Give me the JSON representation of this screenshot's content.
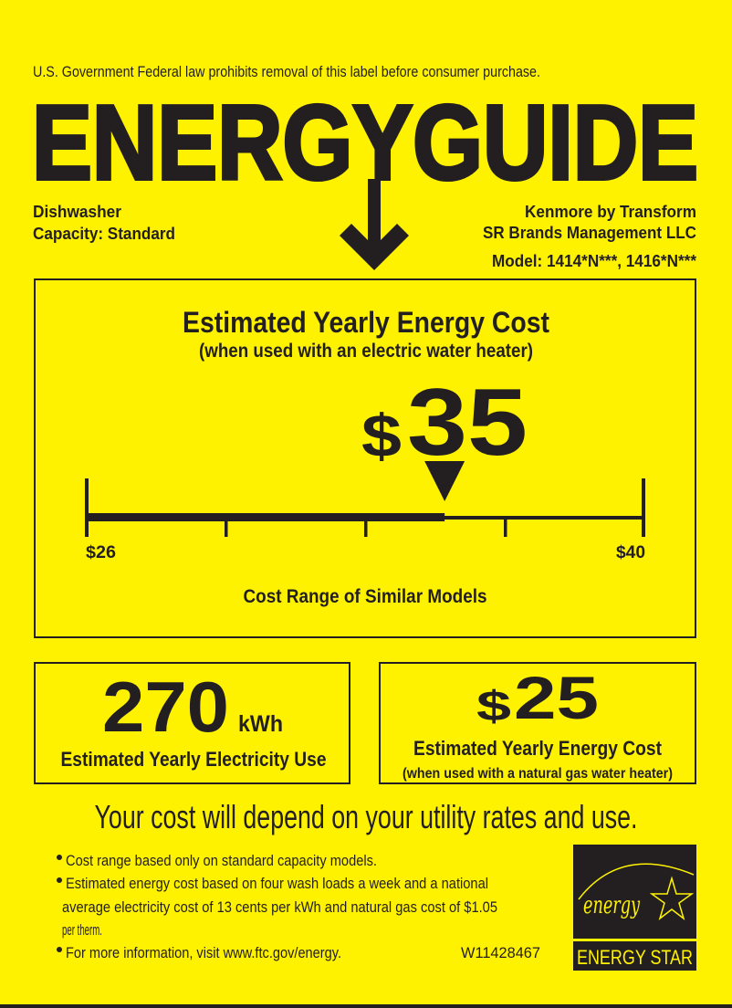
{
  "colors": {
    "background": "#fff200",
    "ink": "#231f20"
  },
  "header": {
    "notice": "U.S. Government  Federal law prohibits removal of this label before consumer purchase.",
    "title": "ENERGYGUIDE",
    "appliance": "Dishwasher",
    "capacity": "Capacity: Standard",
    "brand_line1": "Kenmore by Transform",
    "brand_line2": "SR Brands Management LLC",
    "model": "Model: 1414*N***, 1416*N***"
  },
  "main": {
    "title": "Estimated Yearly Energy Cost",
    "subtitle": "(when used with an electric water heater)",
    "currency": "$",
    "cost": "35",
    "scale_min_label": "$26",
    "scale_max_label": "$40",
    "scale_caption": "Cost Range of Similar Models",
    "scale": {
      "min": 26,
      "max": 40,
      "value": 35
    }
  },
  "electricity": {
    "value": "270",
    "unit": "kWh",
    "label": "Estimated Yearly Electricity Use"
  },
  "gas": {
    "currency": "$",
    "value": "25",
    "label": "Estimated Yearly Energy Cost",
    "sublabel": "(when used with a natural gas water heater)"
  },
  "footer": {
    "headline": "Your cost will depend on your utility rates and use.",
    "bullets": [
      "Cost range based only on standard capacity models.",
      "Estimated energy cost based on four wash loads a week and a national",
      "average electricity cost of 13 cents per kWh and natural gas cost of $1.05",
      "per therm.",
      "For more information, visit www.ftc.gov/energy."
    ],
    "label_code": "W11428467",
    "energy_star_script": "energy",
    "energy_star_label": "ENERGY STAR"
  }
}
